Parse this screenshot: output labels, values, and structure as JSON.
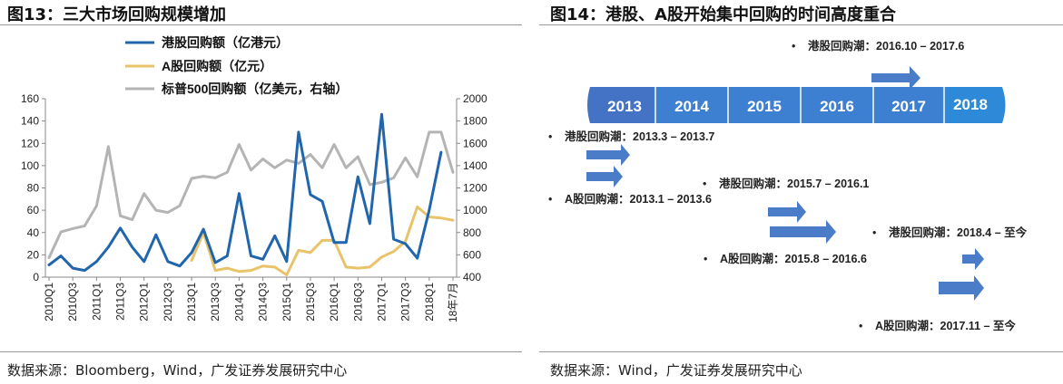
{
  "left": {
    "title": "图13：三大市场回购规模增加",
    "source": "数据来源：Bloomberg，Wind，广发证券发展研究中心"
  },
  "right": {
    "title": "图14：港股、A股开始集中回购的时间高度重合",
    "source": "数据来源：Wind，广发证券发展研究中心",
    "years": [
      "2013",
      "2014",
      "2015",
      "2016",
      "2017",
      "2018"
    ],
    "annotations": [
      "港股回购潮：2016.10 – 2017.6",
      "港股回购潮：2013.3 – 2013.7",
      "港股回购潮：2015.7 – 2016.1",
      "A股回购潮：2013.1 – 2013.6",
      "港股回购潮：2018.4 – 至今",
      "A股回购潮：2015.8 – 2016.6",
      "A股回购潮：2017.11 – 至今"
    ],
    "colors": {
      "timeline_dark": "#4472c4",
      "timeline_light": "#2e86c1",
      "arrow": "#4a7cc7"
    }
  },
  "chart_data": {
    "type": "line",
    "title": "三大市场回购规模增加",
    "categories": [
      "2010Q1",
      "2010Q2",
      "2010Q3",
      "2010Q4",
      "2011Q1",
      "2011Q2",
      "2011Q3",
      "2011Q4",
      "2012Q1",
      "2012Q2",
      "2012Q3",
      "2012Q4",
      "2013Q1",
      "2013Q2",
      "2013Q3",
      "2013Q4",
      "2014Q1",
      "2014Q2",
      "2014Q3",
      "2014Q4",
      "2015Q1",
      "2015Q2",
      "2015Q3",
      "2015Q4",
      "2016Q1",
      "2016Q2",
      "2016Q3",
      "2016Q4",
      "2017Q1",
      "2017Q2",
      "2017Q3",
      "2017Q4",
      "2018Q1",
      "2018Q2",
      "18年7月"
    ],
    "tick_labels": [
      "2010Q1",
      "2010Q3",
      "2011Q1",
      "2011Q3",
      "2012Q1",
      "2012Q3",
      "2013Q1",
      "2013Q3",
      "2014Q1",
      "2014Q3",
      "2015Q1",
      "2015Q3",
      "2016Q1",
      "2016Q3",
      "2017Q1",
      "2017Q3",
      "2018Q1",
      "18年7月"
    ],
    "ylim_left": [
      0,
      160
    ],
    "yticks_left": [
      0,
      20,
      40,
      60,
      80,
      100,
      120,
      140,
      160
    ],
    "ylim_right": [
      400,
      2000
    ],
    "yticks_right": [
      400,
      600,
      800,
      1000,
      1200,
      1400,
      1600,
      1800,
      2000
    ],
    "series": [
      {
        "name": "港股回购额（亿港元）",
        "axis": "left",
        "color": "#2166ac",
        "values": [
          11,
          19,
          8,
          6,
          14,
          27,
          44,
          27,
          14,
          38,
          14,
          10,
          22,
          43,
          13,
          19,
          75,
          19,
          16,
          37,
          14,
          130,
          74,
          68,
          31,
          31,
          90,
          48,
          146,
          34,
          30,
          17,
          60,
          112,
          null
        ]
      },
      {
        "name": "A股回购额（亿元）",
        "axis": "left",
        "color": "#e8c36a",
        "values": [
          null,
          null,
          null,
          null,
          null,
          null,
          null,
          null,
          null,
          null,
          null,
          null,
          15,
          40,
          6,
          8,
          5,
          6,
          10,
          9,
          2,
          24,
          22,
          33,
          33,
          9,
          8,
          9,
          18,
          23,
          32,
          63,
          54,
          53,
          51
        ]
      },
      {
        "name": "标普500回购额（亿美元，右轴）",
        "axis": "right",
        "color": "#b4b4b4",
        "values": [
          575,
          805,
          835,
          860,
          1040,
          1570,
          950,
          915,
          1150,
          1000,
          980,
          1040,
          1285,
          1305,
          1290,
          1340,
          1590,
          1360,
          1460,
          1380,
          1450,
          1420,
          1500,
          1380,
          1590,
          1380,
          1480,
          1230,
          1250,
          1290,
          1470,
          1300,
          1700,
          1700,
          1340
        ]
      }
    ]
  }
}
